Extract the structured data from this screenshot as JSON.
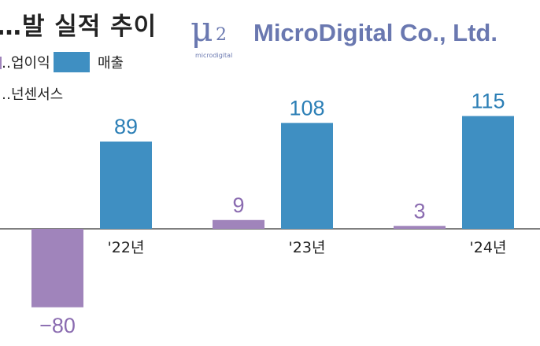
{
  "title": "…발 실적 추이",
  "legend": {
    "operating_profit": "…업이익",
    "revenue": "매출"
  },
  "source": "…넌센서스",
  "logo": {
    "mark": "μ",
    "mark_sub": "2",
    "small_text": "microdigital",
    "company": "MicroDigital Co., Ltd."
  },
  "colors": {
    "revenue": "#3f8fc2",
    "operating_profit": "#a084bb",
    "revenue_label": "#2c7fb6",
    "profit_label": "#8a6bb0",
    "baseline": "#555555"
  },
  "chart_data": {
    "type": "bar",
    "categories": [
      "'22년",
      "'23년",
      "'24년"
    ],
    "series": [
      {
        "name": "…업이익",
        "values": [
          -80,
          9,
          3
        ]
      },
      {
        "name": "매출",
        "values": [
          89,
          108,
          115
        ]
      }
    ],
    "data_labels": {
      "operating_profit": [
        "−80",
        "9",
        "3"
      ],
      "revenue": [
        "89",
        "108",
        "115"
      ]
    },
    "ylim": [
      -80,
      115
    ],
    "grid": false,
    "legend_position": "top-left"
  }
}
